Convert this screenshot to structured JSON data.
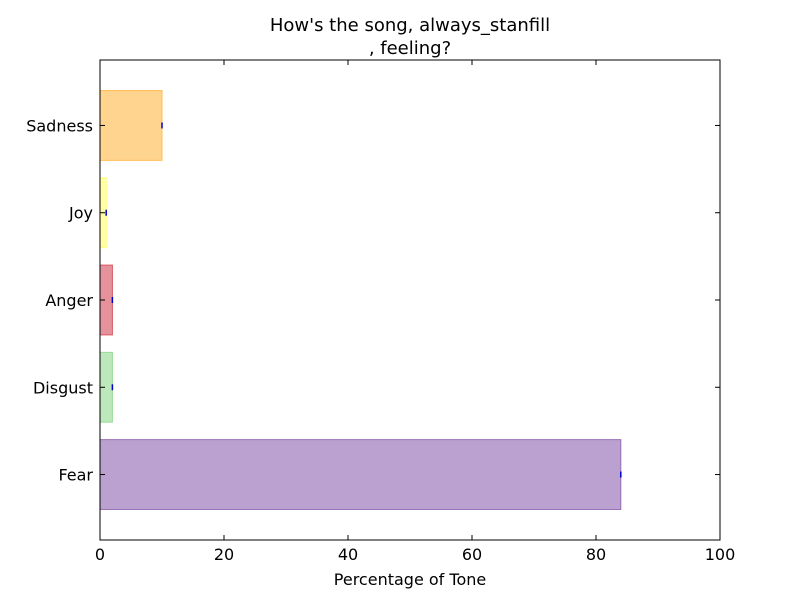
{
  "chart_data": {
    "type": "bar",
    "orientation": "horizontal",
    "title_lines": [
      "How's the song, always_stanfill",
      ", feeling?"
    ],
    "xlabel": "Percentage of Tone",
    "ylabel": "",
    "xlim": [
      0,
      100
    ],
    "xticks": [
      0,
      20,
      40,
      60,
      80,
      100
    ],
    "categories": [
      "Fear",
      "Disgust",
      "Anger",
      "Joy",
      "Sadness"
    ],
    "values": [
      84,
      2,
      2,
      1,
      10
    ],
    "colors": [
      "#8e63b0",
      "#90d890",
      "#d64a5a",
      "#ffff6a",
      "#ffb844"
    ],
    "bar_alpha": 0.6,
    "grid": false,
    "legend": "none"
  }
}
